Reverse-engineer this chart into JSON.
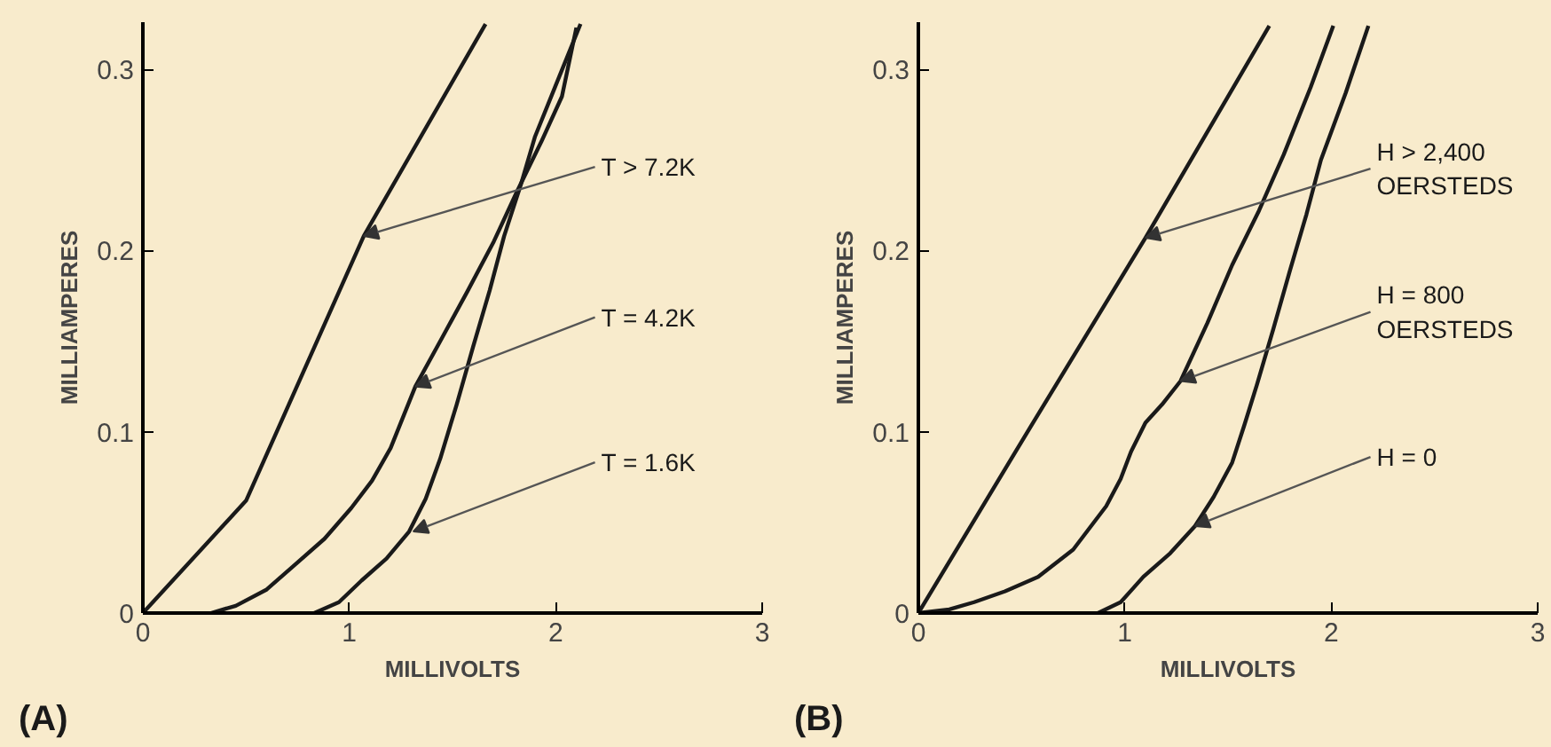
{
  "chart_data": [
    {
      "type": "line",
      "xlabel": "MILLIVOLTS",
      "ylabel": "MILLIAMPERES",
      "xlim": [
        0,
        3
      ],
      "ylim": [
        0,
        0.326
      ],
      "xticks": [
        0,
        1,
        2,
        3
      ],
      "yticks": [
        0,
        0.1,
        0.2,
        0.3
      ],
      "grid": false,
      "marker": "none",
      "line_style": "solid",
      "series": [
        {
          "color": "#1a1a1a",
          "x": [
            0,
            0.5,
            1.07,
            1.66
          ],
          "values": [
            0,
            0.062,
            0.208,
            0.325
          ]
        },
        {
          "color": "#1a1a1a",
          "x": [
            0.33,
            0.45,
            0.6,
            0.74,
            0.88,
            1.01,
            1.11,
            1.2,
            1.32,
            1.45,
            1.57,
            1.7,
            1.81,
            1.93,
            2.03,
            2.1
          ],
          "values": [
            0,
            0.004,
            0.013,
            0.027,
            0.041,
            0.058,
            0.073,
            0.091,
            0.125,
            0.152,
            0.177,
            0.205,
            0.232,
            0.26,
            0.285,
            0.323
          ]
        },
        {
          "color": "#1a1a1a",
          "x": [
            0.83,
            0.95,
            1.06,
            1.18,
            1.29,
            1.37,
            1.44,
            1.52,
            1.6,
            1.68,
            1.75,
            1.83,
            1.9,
            2.01,
            2.12
          ],
          "values": [
            0,
            0.006,
            0.018,
            0.03,
            0.045,
            0.063,
            0.085,
            0.115,
            0.147,
            0.178,
            0.208,
            0.236,
            0.263,
            0.294,
            0.325
          ]
        }
      ],
      "annotations": [
        {
          "text": "T > 7.2K",
          "x": 1.07,
          "y": 0.208
        },
        {
          "text": "T = 4.2K",
          "x": 1.32,
          "y": 0.125
        },
        {
          "text": "T = 1.6K",
          "x": 1.31,
          "y": 0.045
        },
        "(A)"
      ]
    },
    {
      "type": "line",
      "xlabel": "MILLIVOLTS",
      "ylabel": "MILLIAMPERES",
      "xlim": [
        0,
        3
      ],
      "ylim": [
        0,
        0.326
      ],
      "xticks": [
        0,
        1,
        2,
        3
      ],
      "yticks": [
        0,
        0.1,
        0.2,
        0.3
      ],
      "grid": false,
      "marker": "none",
      "line_style": "solid",
      "series": [
        {
          "color": "#1a1a1a",
          "x": [
            0,
            0.55,
            1.1,
            1.7
          ],
          "values": [
            0,
            0.104,
            0.207,
            0.324
          ]
        },
        {
          "color": "#1a1a1a",
          "x": [
            0,
            0.15,
            0.27,
            0.42,
            0.58,
            0.75,
            0.91,
            0.98,
            1.03,
            1.1,
            1.18,
            1.27,
            1.4,
            1.52,
            1.65,
            1.77,
            1.9,
            2.01
          ],
          "values": [
            0,
            0.002,
            0.006,
            0.012,
            0.02,
            0.035,
            0.059,
            0.074,
            0.089,
            0.105,
            0.115,
            0.128,
            0.16,
            0.192,
            0.222,
            0.253,
            0.29,
            0.324
          ]
        },
        {
          "color": "#1a1a1a",
          "x": [
            0.87,
            0.98,
            1.09,
            1.22,
            1.34,
            1.43,
            1.52,
            1.58,
            1.64,
            1.72,
            1.8,
            1.88,
            1.95,
            2.07,
            2.18
          ],
          "values": [
            0,
            0.006,
            0.02,
            0.033,
            0.048,
            0.064,
            0.083,
            0.104,
            0.126,
            0.157,
            0.189,
            0.22,
            0.25,
            0.287,
            0.324
          ]
        }
      ],
      "annotations": [
        {
          "text": "H > 2,400\nOERSTEDS",
          "x": 1.1,
          "y": 0.207
        },
        {
          "text": "H = 800\nOERSTEDS",
          "x": 1.27,
          "y": 0.128
        },
        {
          "text": "H = 0",
          "x": 1.34,
          "y": 0.048
        },
        "(B)"
      ]
    }
  ]
}
